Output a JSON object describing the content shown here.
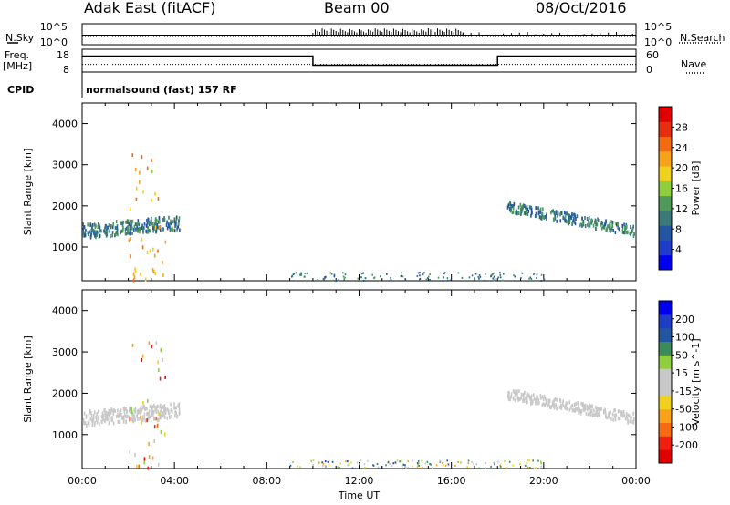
{
  "header": {
    "station": "Adak East (fitACF)",
    "beam": "Beam 00",
    "date": "08/Oct/2016"
  },
  "panel_labels": {
    "nsky": "N.Sky",
    "nsearch": "N.Search",
    "freq_line1": "Freq.",
    "freq_line2": "[MHz]",
    "nave": "Nave",
    "cpid": "CPID",
    "cpid_text": "normalsound (fast) 157 RF"
  },
  "colors": {
    "power_scale": [
      "#0000ee",
      "#1e3cc8",
      "#2355a0",
      "#3c7a7a",
      "#4f9a58",
      "#8fce3c",
      "#f0d21e",
      "#f7a21a",
      "#f26a12",
      "#e82e10",
      "#e00000"
    ],
    "velocity_scale": [
      "#e00000",
      "#f02010",
      "#f56a12",
      "#f7a21a",
      "#f0d21e",
      "#c8c8c8",
      "#c8c8c8",
      "#8fce3c",
      "#3c8a5a",
      "#2355a0",
      "#1e3cc8",
      "#0000ee"
    ]
  },
  "chart_data": [
    {
      "type": "line",
      "panel": "noise",
      "left_axis": {
        "ticks": [
          "10^5",
          "10^0"
        ]
      },
      "right_axis": {
        "ticks": [
          "10^5",
          "10^0"
        ]
      },
      "series": [
        {
          "name": "N.Sky",
          "style": "solid",
          "x": [
            "00:00",
            "10:00",
            "16:00",
            "24:00"
          ],
          "values": [
            1,
            3,
            2,
            1
          ]
        },
        {
          "name": "N.Search",
          "style": "dotted",
          "x": [
            "00:00",
            "24:00"
          ],
          "values": [
            1,
            1
          ]
        }
      ]
    },
    {
      "type": "line",
      "panel": "frequency-nave",
      "left_axis": {
        "ticks": [
          "18",
          "8"
        ],
        "ylim": [
          8,
          18
        ]
      },
      "right_axis": {
        "ticks": [
          "60",
          "0"
        ],
        "ylim": [
          0,
          60
        ]
      },
      "series": [
        {
          "name": "Freq.",
          "style": "solid",
          "x": [
            "00:00",
            "10:00",
            "10:00",
            "18:00",
            "18:00",
            "24:00"
          ],
          "values": [
            15,
            15,
            11,
            11,
            15,
            15
          ]
        },
        {
          "name": "Nave",
          "style": "dotted",
          "x": [
            "00:00",
            "24:00"
          ],
          "values": [
            20,
            20
          ]
        }
      ]
    },
    {
      "type": "heatmap",
      "panel": "power",
      "ylabel": "Slant Range [km]",
      "xlim": [
        "00:00",
        "24:00"
      ],
      "ylim": [
        180,
        4500
      ],
      "y_ticks": [
        "4000",
        "3000",
        "2000",
        "1000"
      ],
      "colorbar": {
        "label": "Power [dB]",
        "ticks": [
          "28",
          "24",
          "20",
          "16",
          "12",
          "8",
          "4"
        ],
        "range": [
          0,
          30
        ]
      },
      "regions": [
        {
          "t_start": 0.0,
          "t_end": 4.2,
          "range_lo": 1300,
          "range_hi": 1550,
          "value": 8
        },
        {
          "t_start": 18.4,
          "t_end": 23.9,
          "range_lo": 1300,
          "range_hi": 1900,
          "value": 8
        },
        {
          "t_start": 2.0,
          "t_end": 3.6,
          "range_lo": 200,
          "range_hi": 3400,
          "value": 18
        },
        {
          "t_start": 9.0,
          "t_end": 20.0,
          "range_lo": 200,
          "range_hi": 400,
          "value": 8
        }
      ]
    },
    {
      "type": "heatmap",
      "panel": "velocity",
      "ylabel": "Slant Range [km]",
      "xlabel": "Time UT",
      "xlim": [
        "00:00",
        "24:00"
      ],
      "ylim": [
        180,
        4500
      ],
      "x_ticks": [
        "00:00",
        "04:00",
        "08:00",
        "12:00",
        "16:00",
        "20:00",
        "00:00"
      ],
      "y_ticks": [
        "4000",
        "3000",
        "2000",
        "1000"
      ],
      "colorbar": {
        "label": "Velocity [m s^-1]",
        "ticks": [
          "200",
          "100",
          "50",
          "15",
          "-15",
          "-50",
          "-100",
          "-200"
        ],
        "range": [
          -250,
          250
        ]
      },
      "regions": [
        {
          "t_start": 0.0,
          "t_end": 4.2,
          "range_lo": 1300,
          "range_hi": 1550,
          "value": 0
        },
        {
          "t_start": 18.4,
          "t_end": 23.9,
          "range_lo": 1300,
          "range_hi": 1900,
          "value": 0
        },
        {
          "t_start": 2.0,
          "t_end": 3.6,
          "range_lo": 200,
          "range_hi": 3400,
          "value": -80
        },
        {
          "t_start": 9.0,
          "t_end": 20.0,
          "range_lo": 200,
          "range_hi": 400,
          "value": 30
        }
      ]
    }
  ]
}
